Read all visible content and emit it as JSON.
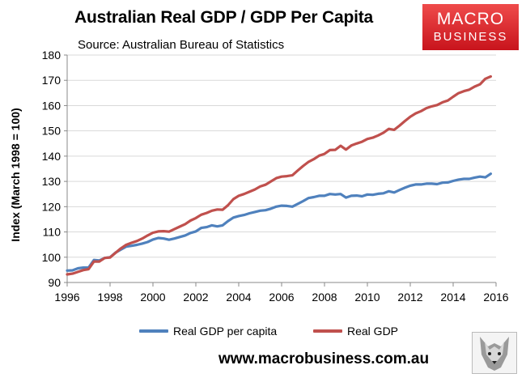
{
  "title": "Australian Real GDP / GDP Per Capita",
  "subtitle": "Source: Australian Bureau of Statistics",
  "logo": {
    "line1": "MACRO",
    "line2": "BUSINESS"
  },
  "website": "www.macrobusiness.com.au",
  "colors": {
    "real_gdp": "#c0504d",
    "gdp_per_capita": "#4f81bd",
    "logo": "#d71920"
  },
  "chart_data": {
    "type": "line",
    "title": "Australian Real GDP / GDP Per Capita",
    "subtitle": "Source: Australian Bureau of Statistics",
    "xlabel": "",
    "ylabel": "Index (March 1998 = 100)",
    "xlim": [
      1996,
      2016
    ],
    "ylim": [
      90,
      180
    ],
    "x_ticks": [
      1996,
      1998,
      2000,
      2002,
      2004,
      2006,
      2008,
      2010,
      2012,
      2014,
      2016
    ],
    "y_ticks": [
      90,
      100,
      110,
      120,
      130,
      140,
      150,
      160,
      170,
      180
    ],
    "grid": true,
    "legend_position": "bottom",
    "x": [
      1996,
      1996.25,
      1996.5,
      1996.75,
      1997,
      1997.25,
      1997.5,
      1997.75,
      1998,
      1998.25,
      1998.5,
      1998.75,
      1999,
      1999.25,
      1999.5,
      1999.75,
      2000,
      2000.25,
      2000.5,
      2000.75,
      2001,
      2001.25,
      2001.5,
      2001.75,
      2002,
      2002.25,
      2002.5,
      2002.75,
      2003,
      2003.25,
      2003.5,
      2003.75,
      2004,
      2004.25,
      2004.5,
      2004.75,
      2005,
      2005.25,
      2005.5,
      2005.75,
      2006,
      2006.25,
      2006.5,
      2006.75,
      2007,
      2007.25,
      2007.5,
      2007.75,
      2008,
      2008.25,
      2008.5,
      2008.75,
      2009,
      2009.25,
      2009.5,
      2009.75,
      2010,
      2010.25,
      2010.5,
      2010.75,
      2011,
      2011.25,
      2011.5,
      2011.75,
      2012,
      2012.25,
      2012.5,
      2012.75,
      2013,
      2013.25,
      2013.5,
      2013.75,
      2014,
      2014.25,
      2014.5,
      2014.75,
      2015,
      2015.25,
      2015.5,
      2015.75
    ],
    "series": [
      {
        "name": "Real GDP per capita",
        "color": "#4f81bd",
        "values": [
          94.7,
          94.8,
          95.6,
          95.9,
          95.9,
          98.9,
          98.7,
          99.7,
          100.0,
          101.8,
          103.0,
          104.2,
          104.5,
          104.9,
          105.4,
          106.0,
          107.0,
          107.6,
          107.4,
          106.9,
          107.4,
          108.0,
          108.6,
          109.6,
          110.2,
          111.6,
          111.9,
          112.6,
          112.2,
          112.6,
          114.3,
          115.7,
          116.3,
          116.7,
          117.4,
          117.9,
          118.4,
          118.6,
          119.2,
          120.0,
          120.4,
          120.3,
          120.0,
          121.1,
          122.2,
          123.4,
          123.8,
          124.3,
          124.3,
          125.0,
          124.8,
          125.0,
          123.6,
          124.3,
          124.4,
          124.1,
          124.8,
          124.7,
          125.1,
          125.3,
          126.1,
          125.6,
          126.6,
          127.5,
          128.3,
          128.8,
          128.8,
          129.1,
          129.1,
          128.9,
          129.5,
          129.6,
          130.2,
          130.7,
          131.0,
          131.0,
          131.5,
          131.9,
          131.6,
          133.0
        ]
      },
      {
        "name": "Real GDP",
        "color": "#c0504d",
        "values": [
          93.2,
          93.5,
          94.2,
          94.9,
          95.3,
          98.3,
          98.3,
          99.7,
          99.9,
          101.7,
          103.5,
          104.9,
          105.7,
          106.4,
          107.4,
          108.6,
          109.7,
          110.2,
          110.3,
          110.1,
          111.1,
          112.1,
          113.1,
          114.5,
          115.5,
          116.8,
          117.5,
          118.4,
          118.9,
          118.8,
          120.6,
          123.0,
          124.3,
          125.0,
          125.9,
          126.8,
          128.0,
          128.7,
          130.0,
          131.3,
          131.9,
          132.1,
          132.4,
          134.3,
          136.1,
          137.7,
          138.8,
          140.2,
          140.9,
          142.4,
          142.5,
          144.1,
          142.6,
          144.2,
          145.0,
          145.7,
          146.8,
          147.3,
          148.2,
          149.3,
          150.8,
          150.4,
          152.1,
          153.9,
          155.6,
          156.9,
          157.8,
          159.0,
          159.7,
          160.2,
          161.3,
          162.0,
          163.5,
          164.9,
          165.7,
          166.3,
          167.5,
          168.4,
          170.6,
          171.5
        ]
      }
    ]
  }
}
